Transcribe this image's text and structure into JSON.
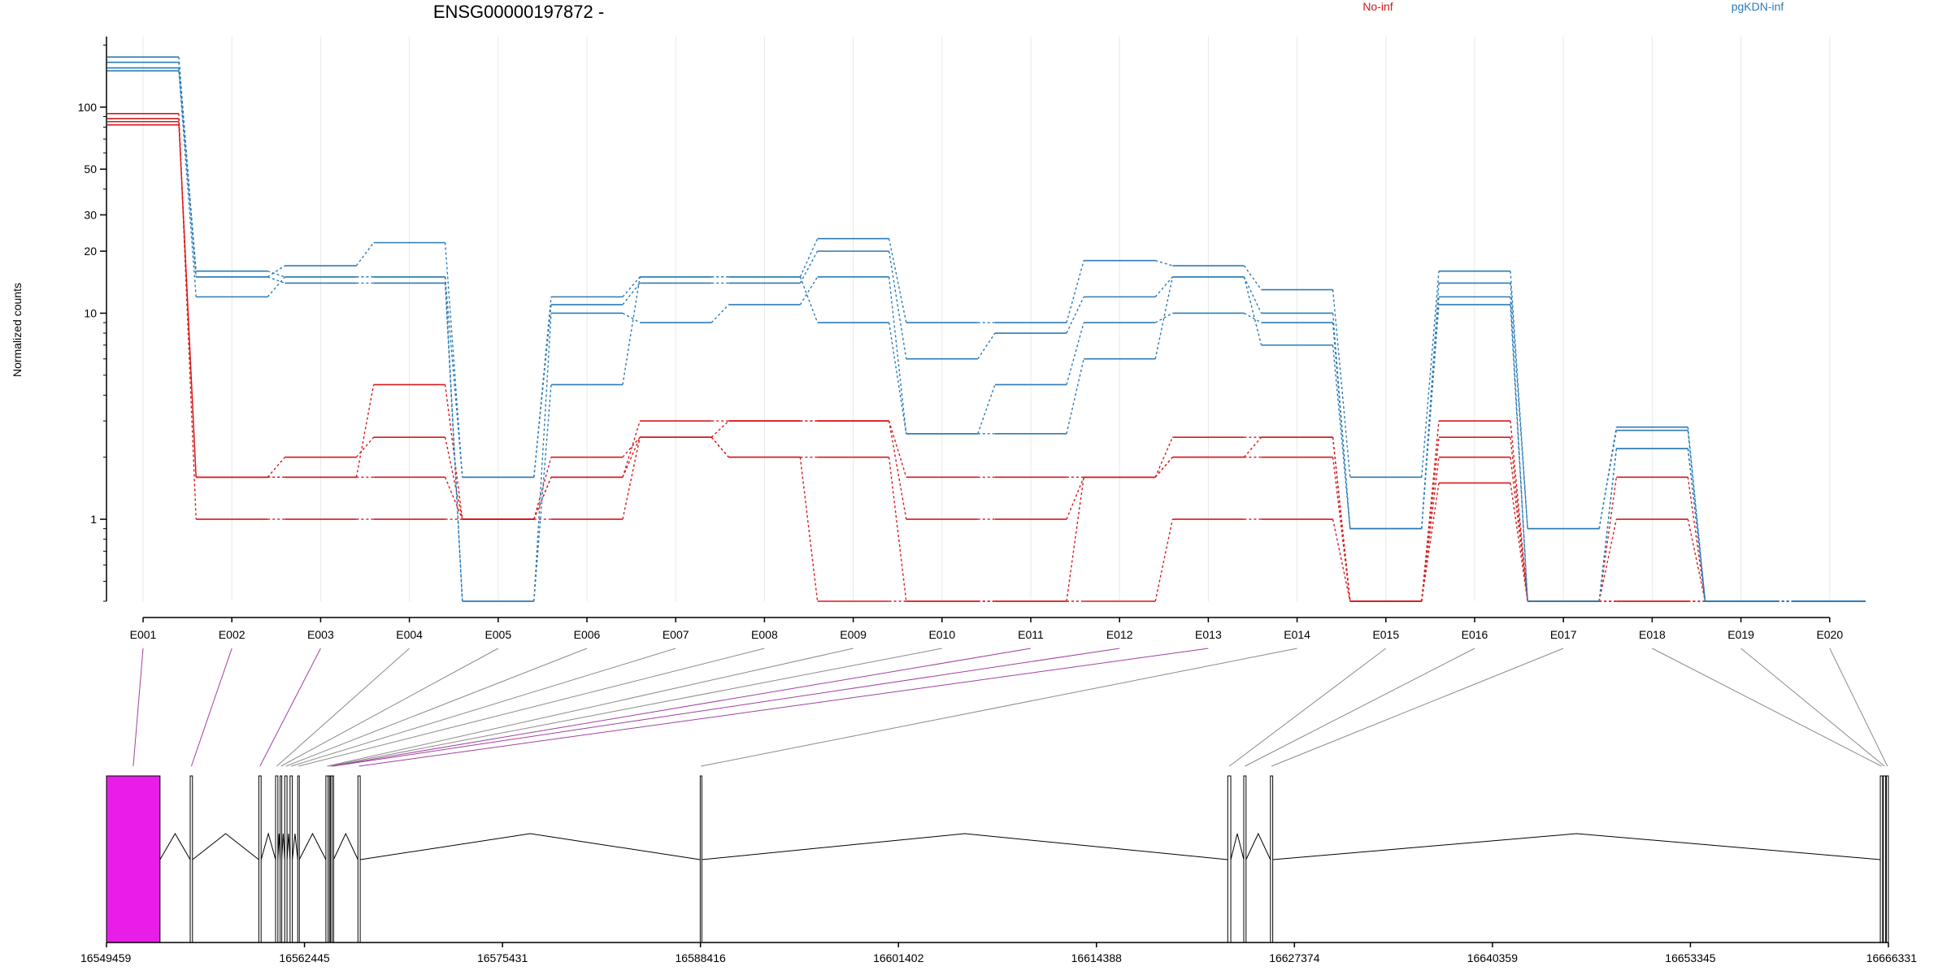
{
  "chart_data": {
    "type": "line",
    "title": "ENSG00000197872 -",
    "ylabel": "Normalized counts",
    "yscale": "log",
    "ylim": [
      0.4,
      220
    ],
    "yticks": [
      1,
      10,
      20,
      30,
      50,
      100
    ],
    "ytick_labels": [
      "1",
      "10",
      "20",
      "30",
      "50",
      "100"
    ],
    "categories": [
      "E001",
      "E002",
      "E003",
      "E004",
      "E005",
      "E006",
      "E007",
      "E008",
      "E009",
      "E010",
      "E011",
      "E012",
      "E013",
      "E014",
      "E015",
      "E016",
      "E017",
      "E018",
      "E019",
      "E020"
    ],
    "groups": [
      {
        "name": "No-inf",
        "color": "#d7191c"
      },
      {
        "name": "pgKDN-inf",
        "color": "#2c7bb6"
      }
    ],
    "series": [
      {
        "group": "No-inf",
        "values": [
          93,
          1.0,
          1.0,
          1.0,
          1.0,
          1.0,
          2.5,
          2.0,
          0.4,
          0.4,
          0.4,
          0.4,
          1.0,
          1.0,
          0.4,
          1.5,
          0.4,
          0.4,
          0.4,
          0.4
        ]
      },
      {
        "group": "No-inf",
        "values": [
          88,
          1.6,
          1.6,
          1.6,
          1.0,
          1.6,
          2.5,
          3.0,
          3.0,
          1.0,
          1.0,
          1.6,
          2.0,
          2.0,
          0.4,
          2.0,
          0.4,
          1.0,
          0.4,
          0.4
        ]
      },
      {
        "group": "No-inf",
        "values": [
          85,
          1.6,
          2.0,
          2.5,
          1.0,
          1.6,
          3.0,
          3.0,
          3.0,
          1.6,
          1.6,
          1.6,
          2.5,
          2.5,
          0.4,
          2.5,
          0.4,
          1.6,
          0.4,
          0.4
        ]
      },
      {
        "group": "No-inf",
        "values": [
          82,
          1.6,
          1.6,
          4.5,
          1.0,
          2.0,
          2.5,
          2.0,
          2.0,
          0.4,
          0.4,
          1.6,
          2.0,
          2.5,
          0.4,
          3.0,
          0.4,
          0.4,
          0.4,
          0.4
        ]
      },
      {
        "group": "pgKDN-inf",
        "values": [
          175,
          15,
          17,
          22,
          1.6,
          12,
          15,
          15,
          23,
          9,
          9,
          18,
          17,
          13,
          1.6,
          16,
          0.9,
          2.8,
          0.4,
          0.4
        ]
      },
      {
        "group": "pgKDN-inf",
        "values": [
          165,
          16,
          15,
          15,
          1.6,
          11,
          14,
          14,
          20,
          6,
          8,
          12,
          15,
          10,
          0.9,
          14,
          0.9,
          2.7,
          0.4,
          0.4
        ]
      },
      {
        "group": "pgKDN-inf",
        "values": [
          155,
          15,
          14,
          14,
          0.4,
          10,
          9,
          11,
          15,
          2.6,
          4.5,
          9,
          10,
          9,
          0.9,
          11,
          0.4,
          2.2,
          0.4,
          0.4
        ]
      },
      {
        "group": "pgKDN-inf",
        "values": [
          150,
          12,
          15,
          15,
          0.4,
          4.5,
          15,
          15,
          9,
          2.6,
          2.6,
          6,
          15,
          7,
          0.9,
          12,
          0.4,
          2.2,
          0.4,
          0.4
        ]
      }
    ],
    "gene_model": {
      "coord_ticks": [
        "16549459",
        "16562445",
        "16575431",
        "16588416",
        "16601402",
        "16614388",
        "16627374",
        "16640359",
        "16653345",
        "16666331"
      ],
      "coord_range": [
        16549459,
        16666331
      ],
      "highlight_color": "#e81ee8",
      "exons": [
        {
          "id": "E001",
          "start": 16549459,
          "end": 16552970,
          "highlight": true
        },
        {
          "id": "E002",
          "start": 16554950,
          "end": 16555100,
          "highlight": false
        },
        {
          "id": "E003",
          "start": 16559450,
          "end": 16559600,
          "highlight": false
        },
        {
          "id": "E004",
          "start": 16560550,
          "end": 16560700,
          "highlight": false
        },
        {
          "id": "E005",
          "start": 16560850,
          "end": 16560950,
          "highlight": false
        },
        {
          "id": "E006",
          "start": 16561150,
          "end": 16561300,
          "highlight": false
        },
        {
          "id": "E007",
          "start": 16561500,
          "end": 16561650,
          "highlight": false
        },
        {
          "id": "E008",
          "start": 16562000,
          "end": 16562100,
          "highlight": false
        },
        {
          "id": "E009",
          "start": 16563850,
          "end": 16564000,
          "highlight": false
        },
        {
          "id": "E010",
          "start": 16564000,
          "end": 16564100,
          "highlight": false
        },
        {
          "id": "E011",
          "start": 16564150,
          "end": 16564250,
          "highlight": false
        },
        {
          "id": "E012",
          "start": 16564250,
          "end": 16564350,
          "highlight": false
        },
        {
          "id": "E013",
          "start": 16565950,
          "end": 16566100,
          "highlight": false
        },
        {
          "id": "E014",
          "start": 16588400,
          "end": 16588500,
          "highlight": false
        },
        {
          "id": "E015",
          "start": 16623000,
          "end": 16623200,
          "highlight": false
        },
        {
          "id": "E016",
          "start": 16624050,
          "end": 16624200,
          "highlight": false
        },
        {
          "id": "E017",
          "start": 16625800,
          "end": 16625950,
          "highlight": false
        },
        {
          "id": "E018",
          "start": 16665800,
          "end": 16665950,
          "highlight": false
        },
        {
          "id": "E019",
          "start": 16666000,
          "end": 16666150,
          "highlight": false
        },
        {
          "id": "E020",
          "start": 16666200,
          "end": 16666331,
          "highlight": false
        }
      ],
      "connector_highlight": [
        "E001",
        "E002",
        "E003",
        "E011",
        "E012",
        "E013"
      ]
    }
  }
}
